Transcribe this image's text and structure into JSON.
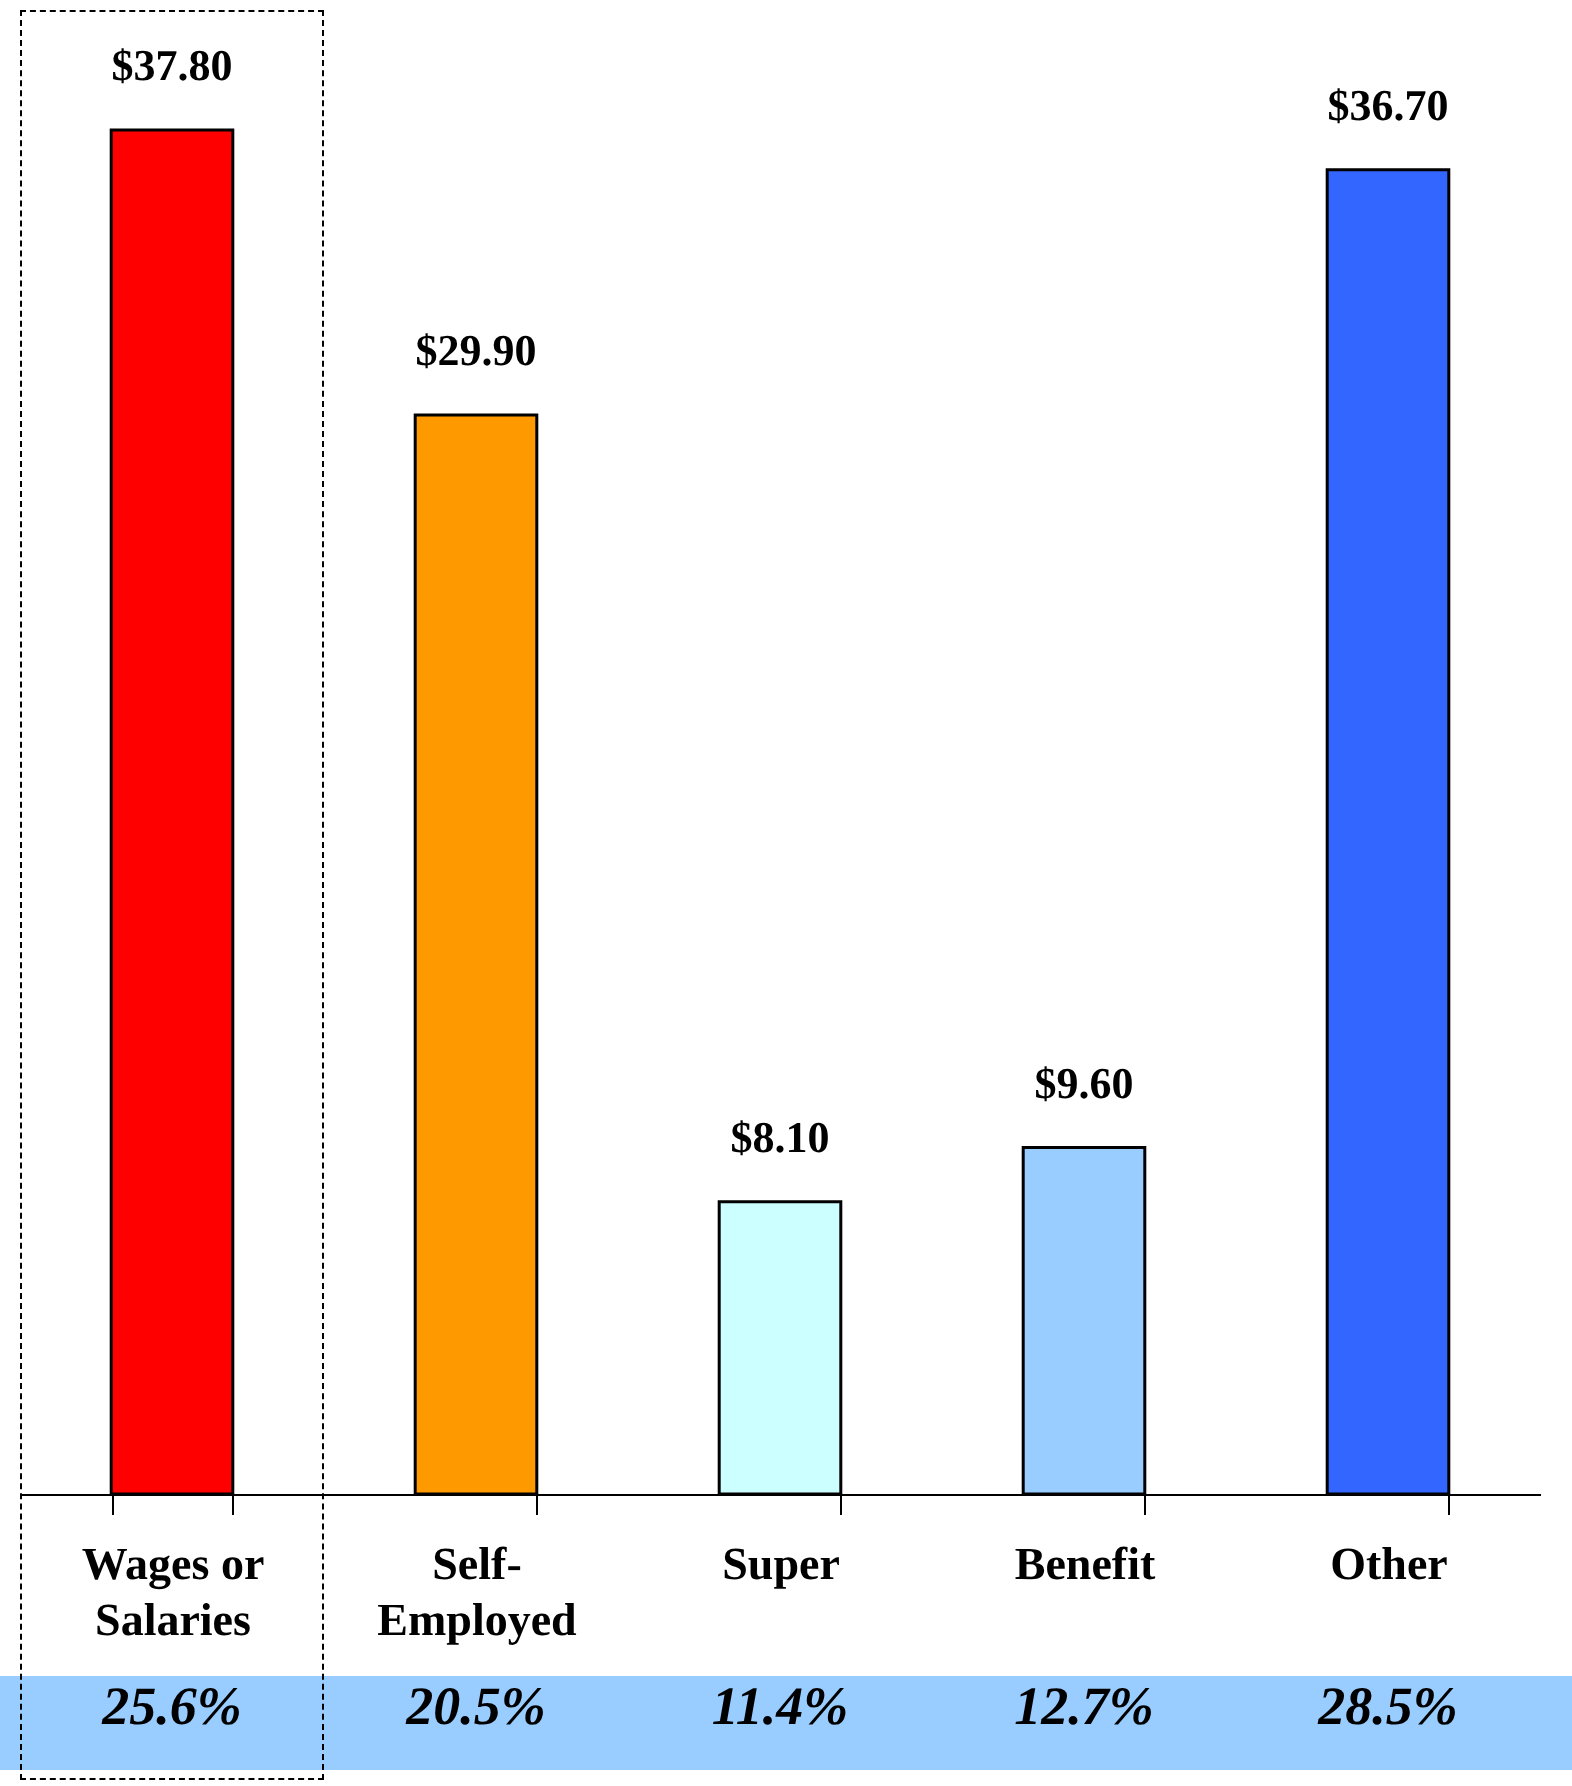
{
  "chart_data": {
    "type": "bar",
    "categories": [
      "Wages or\nSalaries",
      "Self-\nEmployed",
      "Super",
      "Benefit",
      "Other"
    ],
    "values": [
      37.8,
      29.9,
      8.1,
      9.6,
      36.7
    ],
    "colors": [
      "#ff0000",
      "#ff9900",
      "#ccffff",
      "#99ccff",
      "#3366ff"
    ],
    "value_labels": [
      "$37.80",
      "$29.90",
      "$8.10",
      "$9.60",
      "$36.70"
    ],
    "annotations": [
      "25.6%",
      "20.5%",
      "11.4%",
      "12.7%",
      "28.5%"
    ],
    "grid": false
  }
}
